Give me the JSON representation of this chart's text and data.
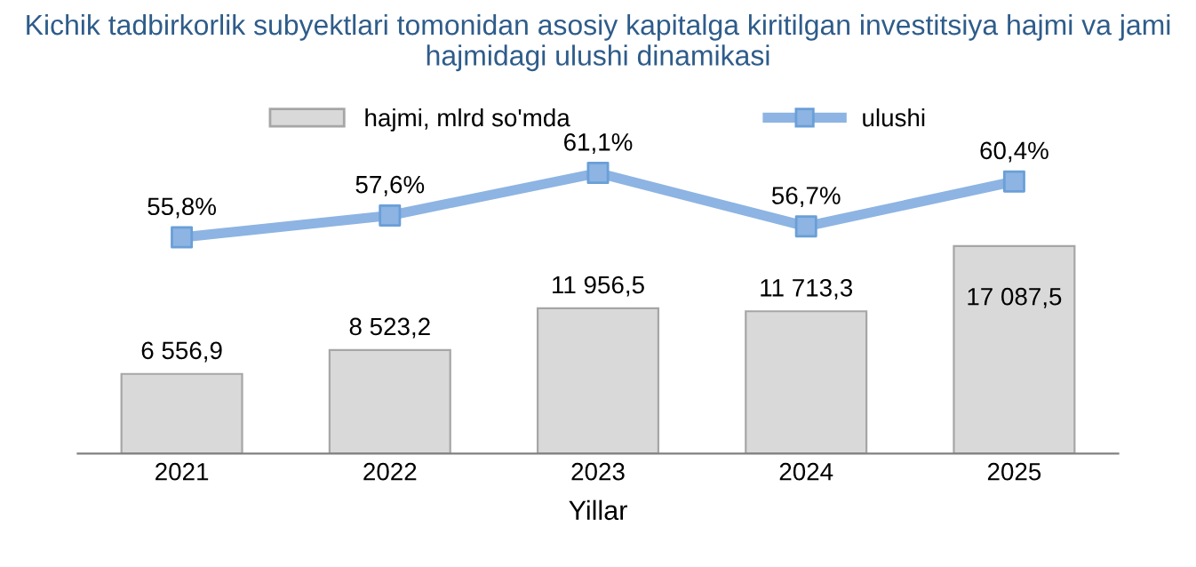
{
  "chart_data": {
    "type": "bar",
    "title": "Kichik tadbirkorlik subyektlari tomonidan asosiy kapitalga kiritilgan investitsiya hajmi va jami hajmidagi ulushi dinamikasi",
    "xlabel": "Yillar",
    "categories": [
      "2021",
      "2022",
      "2023",
      "2024",
      "2025"
    ],
    "series": [
      {
        "name": "hajmi, mlrd so'mda",
        "type": "bar",
        "color": "#d9d9d9",
        "values": [
          6556.9,
          8523.2,
          11956.5,
          11713.3,
          17087.5
        ],
        "value_labels": [
          "6 556,9",
          "8 523,2",
          "11 956,5",
          "11 713,3",
          "17 087,5"
        ]
      },
      {
        "name": "ulushi",
        "type": "line",
        "axis": "y2",
        "color": "#8db4e2",
        "marker": "square",
        "line_style": "solid",
        "values": [
          55.8,
          57.6,
          61.1,
          56.7,
          60.4
        ],
        "value_labels": [
          "55,8%",
          "57,6%",
          "61,1%",
          "56,7%",
          "60,4%"
        ]
      }
    ],
    "ylim": [
      0,
      28000
    ],
    "y2lim": [
      38,
      66
    ],
    "legend": "top",
    "grid": false,
    "tick_labels": "x"
  }
}
